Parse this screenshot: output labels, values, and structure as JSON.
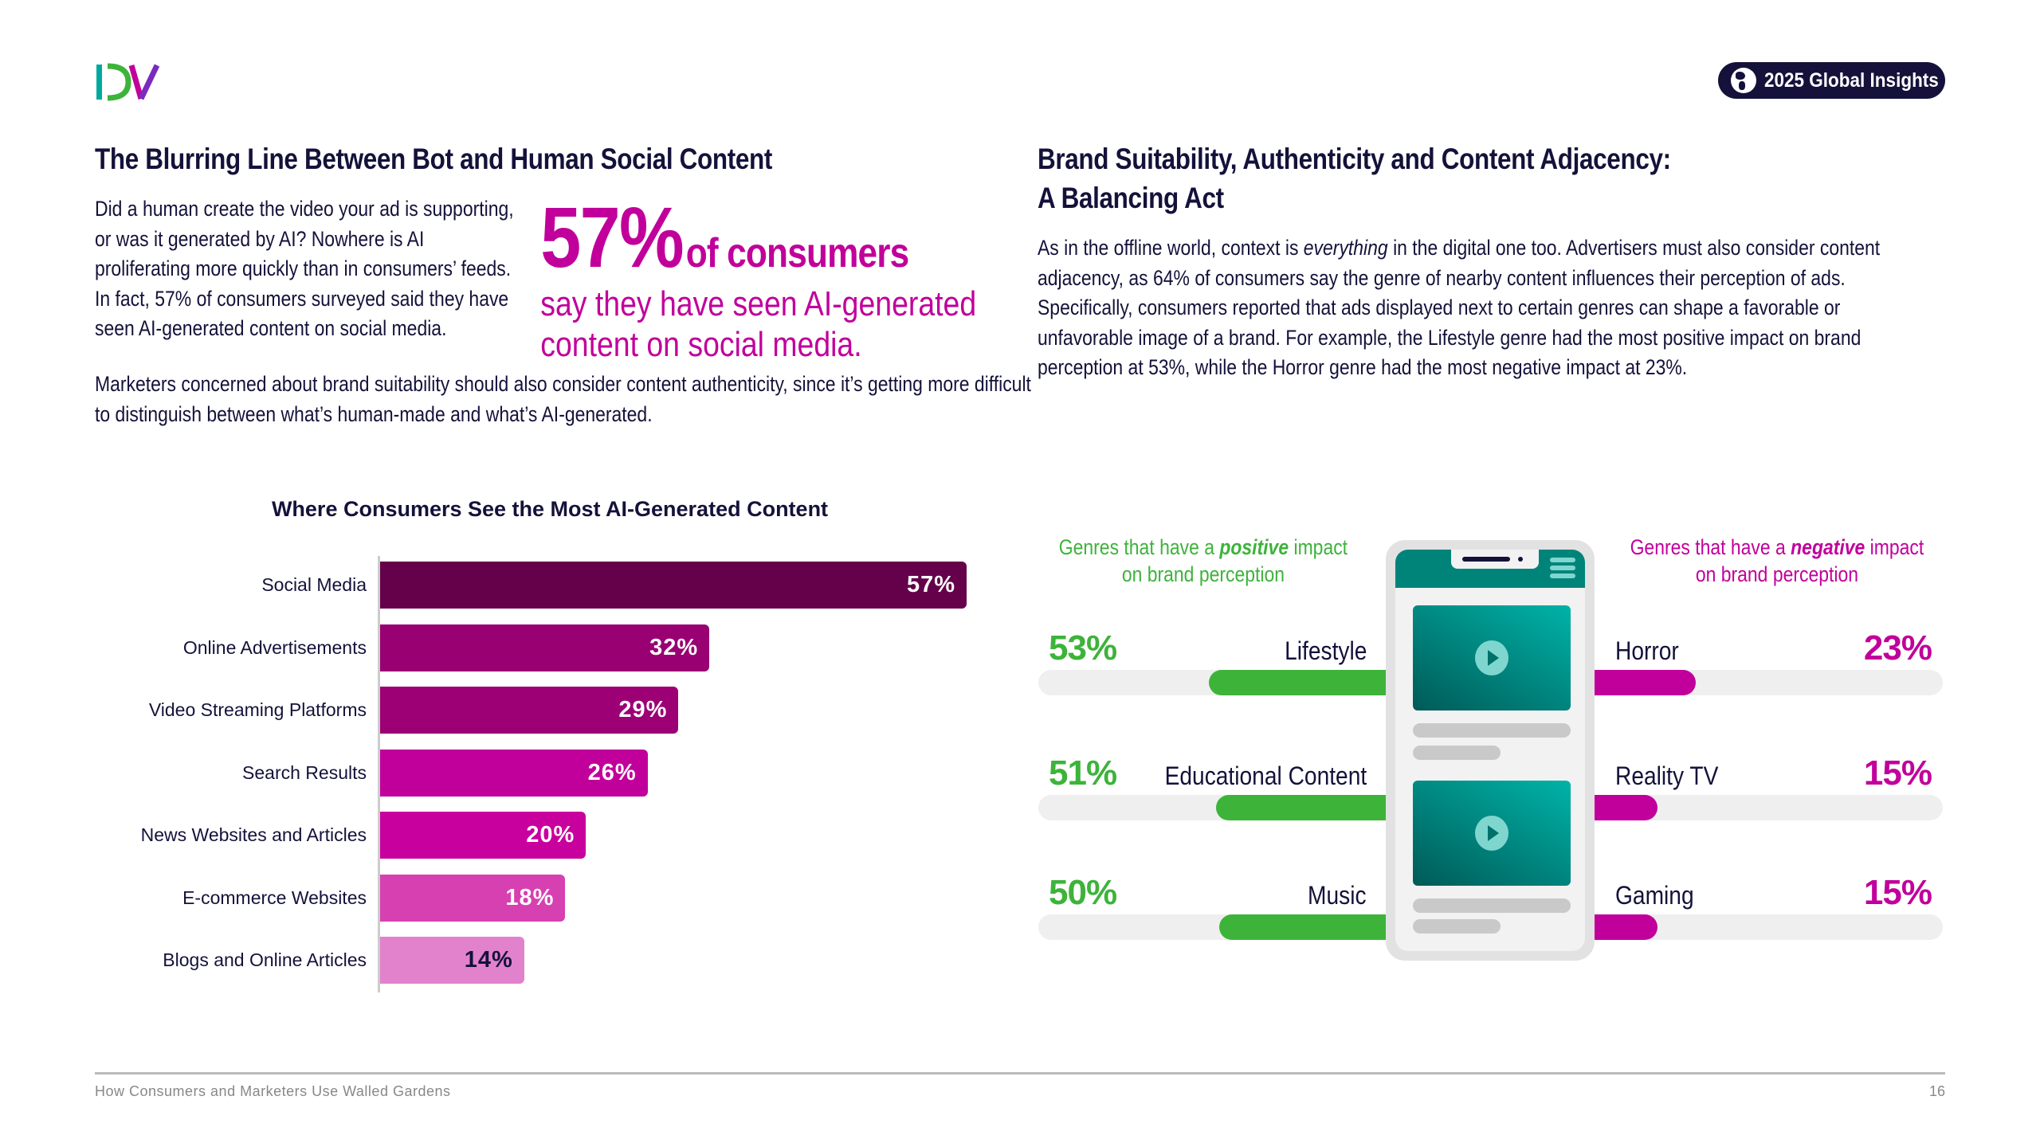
{
  "logo": {
    "text": "DV"
  },
  "badge": {
    "label": "2025 Global Insights",
    "icon": "globe-lightbulb-icon"
  },
  "left": {
    "heading": "The Blurring Line Between Bot and Human Social Content",
    "para1": "Did a human create the video your ad is supporting, or was it generated by AI? Nowhere is AI proliferating more quickly than in consumers’ feeds. In fact, 57% of consumers surveyed said they have seen AI-generated content on social media.",
    "para2": "Marketers concerned about brand suitability should also consider content authenticity, since it’s getting more difficult to distinguish between what’s human-made and what’s AI-generated.",
    "callout": {
      "number": "57%",
      "of": "of consumers",
      "text": "say they have seen AI-generated content on social media."
    }
  },
  "chart_data": {
    "type": "bar",
    "orientation": "horizontal",
    "title": "Where Consumers See the Most AI-Generated Content",
    "categories": [
      "Social Media",
      "Online Advertisements",
      "Video Streaming Platforms",
      "Search Results",
      "News Websites and Articles",
      "E-commerce Websites",
      "Blogs and Online Articles"
    ],
    "values": [
      57,
      32,
      29,
      26,
      20,
      18,
      14
    ],
    "labels": [
      "57%",
      "32%",
      "29%",
      "26%",
      "20%",
      "18%",
      "14%"
    ],
    "colors": [
      "#65004a",
      "#990072",
      "#9c0074",
      "#c1009b",
      "#c8009d",
      "#d640b1",
      "#e282cd"
    ],
    "label_colors": [
      "#ffffff",
      "#ffffff",
      "#ffffff",
      "#ffffff",
      "#ffffff",
      "#ffffff",
      "#14123a"
    ]
  },
  "right": {
    "heading_line1": "Brand Suitability, Authenticity and Content Adjacency:",
    "heading_line2": "A Balancing Act",
    "para_a": "As in the offline world, context is ",
    "para_em": "everything",
    "para_b": " in the digital one too. Advertisers must also consider content adjacency, as 64% of consumers say the genre of nearby content influences their perception of ads. Specifically, consumers reported that ads displayed next to certain genres can shape a favorable or unfavorable image of a brand. For example, the Lifestyle genre had the most positive impact on brand perception at 53%, while the Horror genre had the most negative impact at 23%.",
    "positive_caption": {
      "a": "Genres that have a ",
      "em": "positive",
      "b": " impact",
      "c": "on brand perception"
    },
    "negative_caption": {
      "a": "Genres that have a ",
      "em": "negative",
      "b": " impact",
      "c": "on brand perception"
    },
    "positive": [
      {
        "genre": "Lifestyle",
        "value": 53,
        "label": "53%"
      },
      {
        "genre": "Educational Content",
        "value": 51,
        "label": "51%"
      },
      {
        "genre": "Music",
        "value": 50,
        "label": "50%"
      }
    ],
    "negative": [
      {
        "genre": "Horror",
        "value": 23,
        "label": "23%"
      },
      {
        "genre": "Reality TV",
        "value": 15,
        "label": "15%"
      },
      {
        "genre": "Gaming",
        "value": 15,
        "label": "15%"
      }
    ],
    "colors": {
      "positive": "#3db33a",
      "negative": "#c1009b"
    }
  },
  "footer": {
    "title": "How Consumers and Marketers Use Walled Gardens",
    "page": "16"
  }
}
